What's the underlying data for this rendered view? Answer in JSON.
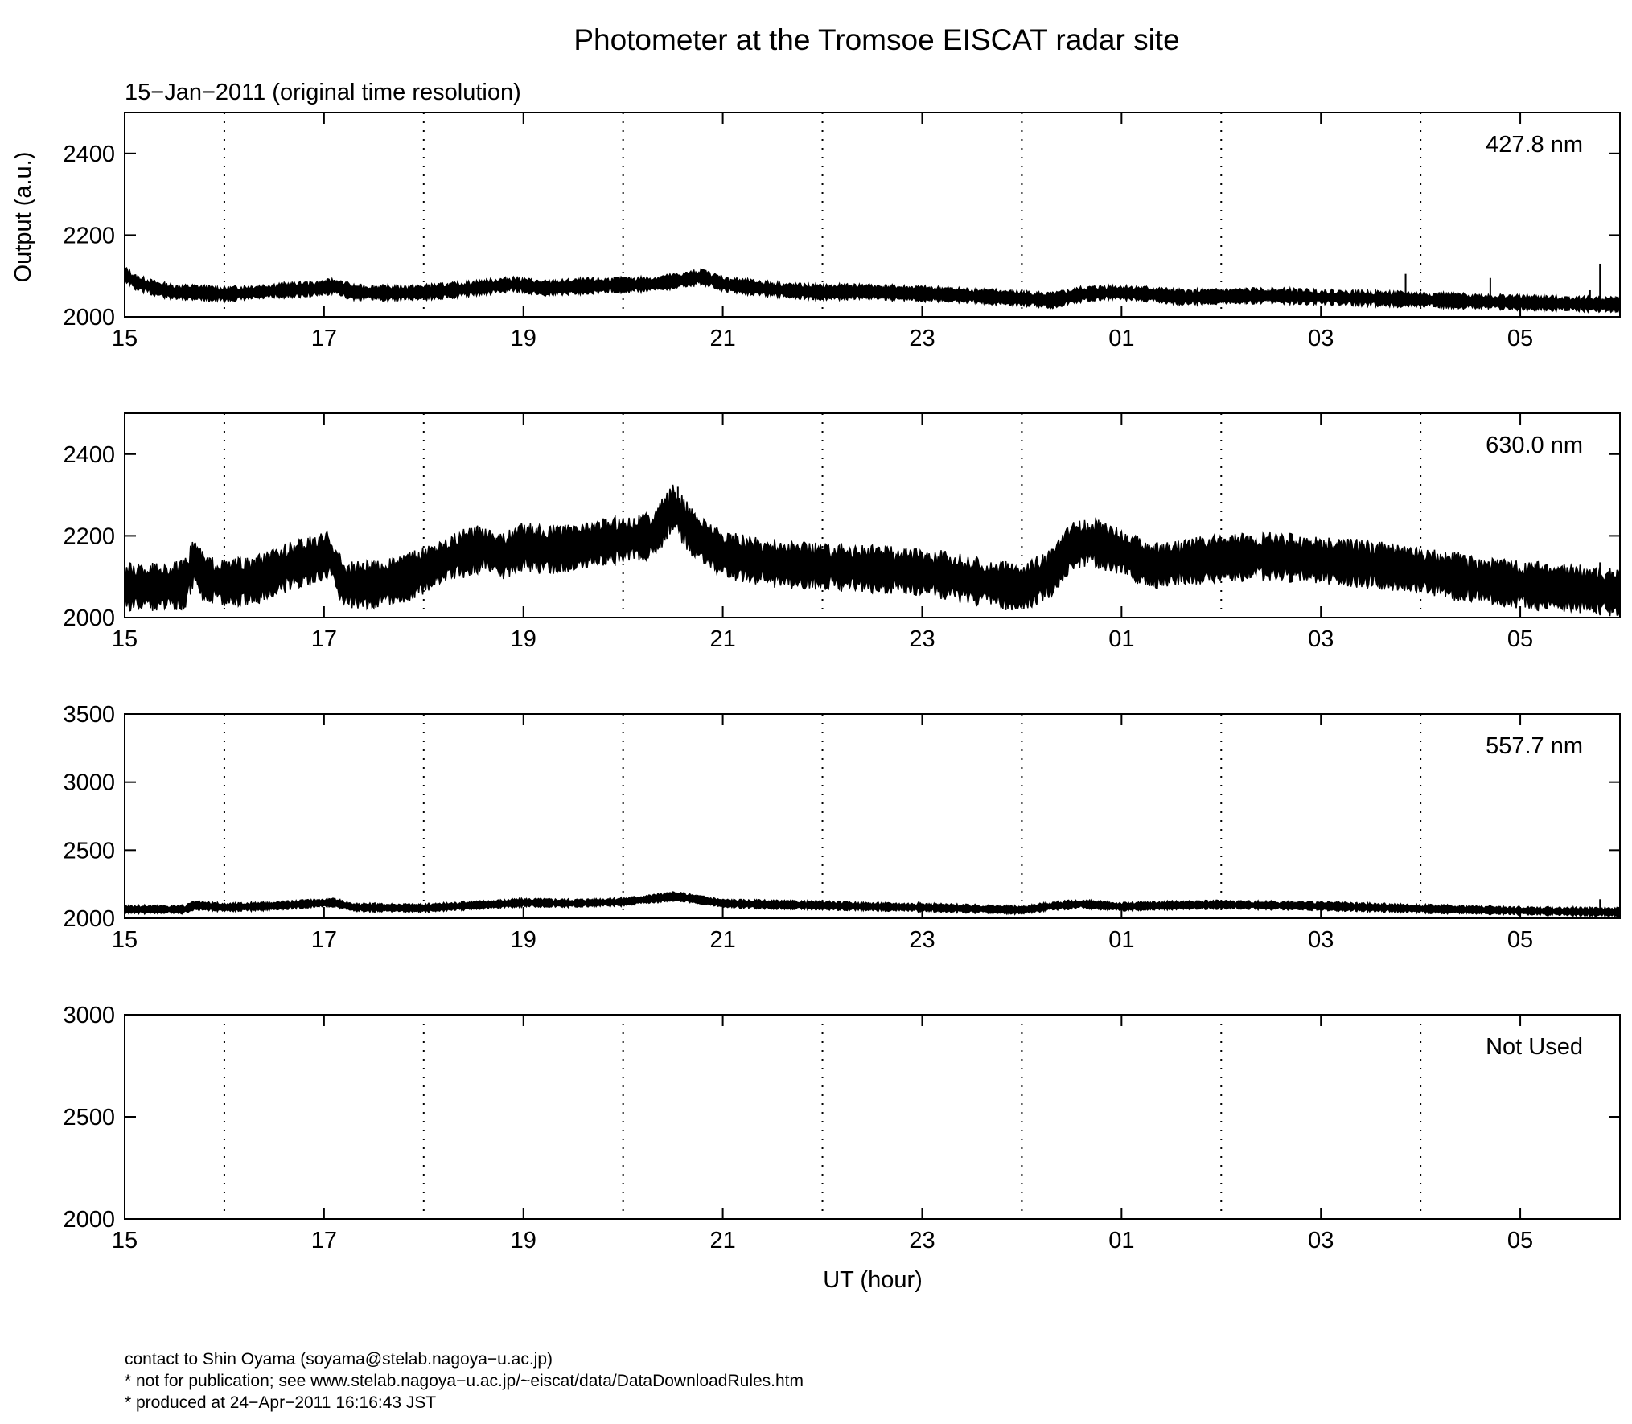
{
  "figure": {
    "title": "Photometer at the Tromsoe EISCAT radar site",
    "subtitle": "15−Jan−2011 (original time resolution)",
    "ylabel": "Output (a.u.)",
    "xlabel": "UT (hour)",
    "footer": [
      "contact to Shin Oyama (soyama@stelab.nagoya−u.ac.jp)",
      "* not for publication; see www.stelab.nagoya−u.ac.jp/~eiscat/data/DataDownloadRules.htm",
      "* produced at 24−Apr−2011 16:16:43 JST"
    ]
  },
  "chart_data": [
    {
      "type": "line",
      "panel_label": "427.8 nm",
      "x_tick_labels": [
        "15",
        "17",
        "19",
        "21",
        "23",
        "01",
        "03",
        "05"
      ],
      "x_ticks_hours": [
        0,
        2,
        4,
        6,
        8,
        10,
        12,
        14
      ],
      "x_grid_hours": [
        1,
        3,
        5,
        7,
        9,
        11,
        13
      ],
      "xlim": [
        0,
        15
      ],
      "ylim": [
        2000,
        2500
      ],
      "y_ticks": [
        2000,
        2200,
        2400
      ],
      "y_tick_labels": [
        "2000",
        "2200",
        "2400"
      ],
      "grid": "dotted vertical at odd hours",
      "band_width": 14,
      "x": [
        0,
        0.1,
        0.3,
        0.5,
        0.7,
        1.0,
        1.3,
        1.6,
        1.9,
        2.1,
        2.3,
        2.7,
        3.0,
        3.3,
        3.6,
        3.9,
        4.2,
        4.6,
        5.0,
        5.3,
        5.6,
        5.8,
        6.0,
        6.3,
        6.6,
        7.0,
        7.4,
        7.8,
        8.2,
        8.6,
        9.0,
        9.3,
        9.6,
        9.9,
        10.3,
        10.6,
        11.0,
        11.5,
        12.0,
        12.5,
        13.0,
        13.5,
        14.0,
        14.5,
        15.0
      ],
      "y": [
        2105,
        2085,
        2070,
        2060,
        2060,
        2055,
        2060,
        2065,
        2068,
        2075,
        2060,
        2058,
        2060,
        2065,
        2072,
        2080,
        2070,
        2075,
        2078,
        2080,
        2090,
        2098,
        2080,
        2072,
        2065,
        2060,
        2062,
        2058,
        2055,
        2050,
        2045,
        2040,
        2055,
        2060,
        2055,
        2048,
        2050,
        2052,
        2048,
        2045,
        2042,
        2038,
        2035,
        2032,
        2030
      ],
      "spikes": [
        {
          "x": 14.8,
          "y": 2130
        },
        {
          "x": 12.85,
          "y": 2105
        },
        {
          "x": 13.7,
          "y": 2095
        },
        {
          "x": 14.7,
          "y": 2065
        }
      ]
    },
    {
      "type": "line",
      "panel_label": "630.0 nm",
      "x_tick_labels": [
        "15",
        "17",
        "19",
        "21",
        "23",
        "01",
        "03",
        "05"
      ],
      "x_ticks_hours": [
        0,
        2,
        4,
        6,
        8,
        10,
        12,
        14
      ],
      "x_grid_hours": [
        1,
        3,
        5,
        7,
        9,
        11,
        13
      ],
      "xlim": [
        0,
        15
      ],
      "ylim": [
        2000,
        2500
      ],
      "y_ticks": [
        2000,
        2200,
        2400
      ],
      "y_tick_labels": [
        "2000",
        "2200",
        "2400"
      ],
      "grid": "dotted vertical at odd hours",
      "band_width": 42,
      "x": [
        0,
        0.4,
        0.6,
        0.7,
        0.8,
        1.0,
        1.3,
        1.5,
        1.7,
        1.9,
        2.05,
        2.2,
        2.5,
        2.8,
        3.0,
        3.3,
        3.6,
        3.8,
        4.0,
        4.2,
        4.5,
        4.8,
        5.0,
        5.3,
        5.5,
        5.55,
        5.7,
        6.0,
        6.3,
        6.6,
        7.0,
        7.4,
        7.8,
        8.2,
        8.5,
        8.8,
        9.0,
        9.3,
        9.5,
        9.7,
        10.0,
        10.3,
        10.6,
        11.0,
        11.5,
        12.0,
        12.5,
        13.0,
        13.5,
        14.0,
        14.3,
        14.6,
        15.0
      ],
      "y": [
        2075,
        2075,
        2080,
        2140,
        2095,
        2085,
        2090,
        2110,
        2130,
        2140,
        2155,
        2080,
        2080,
        2095,
        2115,
        2150,
        2170,
        2150,
        2175,
        2165,
        2170,
        2185,
        2190,
        2200,
        2270,
        2255,
        2205,
        2155,
        2140,
        2130,
        2125,
        2120,
        2115,
        2105,
        2090,
        2080,
        2070,
        2110,
        2175,
        2185,
        2160,
        2125,
        2135,
        2145,
        2150,
        2140,
        2130,
        2115,
        2095,
        2080,
        2075,
        2070,
        2060
      ],
      "spikes": [
        {
          "x": 14.8,
          "y": 2135
        },
        {
          "x": 5.55,
          "y": 2320
        }
      ]
    },
    {
      "type": "line",
      "panel_label": "557.7 nm",
      "x_tick_labels": [
        "15",
        "17",
        "19",
        "21",
        "23",
        "01",
        "03",
        "05"
      ],
      "x_ticks_hours": [
        0,
        2,
        4,
        6,
        8,
        10,
        12,
        14
      ],
      "x_grid_hours": [
        1,
        3,
        5,
        7,
        9,
        11,
        13
      ],
      "xlim": [
        0,
        15
      ],
      "ylim": [
        2000,
        3500
      ],
      "y_ticks": [
        2000,
        2500,
        3000,
        3500
      ],
      "y_tick_labels": [
        "2000",
        "2500",
        "3000",
        "3500"
      ],
      "grid": "dotted vertical at odd hours",
      "band_width": 8,
      "x": [
        0,
        0.6,
        0.7,
        1.0,
        1.5,
        1.9,
        2.1,
        2.3,
        3.0,
        3.5,
        4.0,
        4.5,
        5.0,
        5.5,
        5.6,
        6.0,
        6.5,
        7.0,
        7.5,
        8.0,
        8.5,
        9.0,
        9.3,
        9.6,
        10.0,
        10.5,
        11.0,
        12.0,
        13.0,
        14.0,
        14.5,
        15.0
      ],
      "y": [
        2065,
        2065,
        2095,
        2080,
        2090,
        2110,
        2115,
        2080,
        2075,
        2095,
        2115,
        2110,
        2120,
        2160,
        2155,
        2110,
        2100,
        2095,
        2085,
        2080,
        2070,
        2060,
        2090,
        2105,
        2085,
        2095,
        2100,
        2090,
        2070,
        2055,
        2050,
        2045
      ],
      "spikes": [
        {
          "x": 14.8,
          "y": 2140
        }
      ]
    },
    {
      "type": "line",
      "panel_label": "Not Used",
      "x_tick_labels": [
        "15",
        "17",
        "19",
        "21",
        "23",
        "01",
        "03",
        "05"
      ],
      "x_ticks_hours": [
        0,
        2,
        4,
        6,
        8,
        10,
        12,
        14
      ],
      "x_grid_hours": [
        1,
        3,
        5,
        7,
        9,
        11,
        13
      ],
      "xlim": [
        0,
        15
      ],
      "ylim": [
        2000,
        3000
      ],
      "y_ticks": [
        2000,
        2500,
        3000
      ],
      "y_tick_labels": [
        "2000",
        "2500",
        "3000"
      ],
      "grid": "dotted vertical at odd hours",
      "band_width": 0,
      "x": [],
      "y": [],
      "spikes": []
    }
  ]
}
